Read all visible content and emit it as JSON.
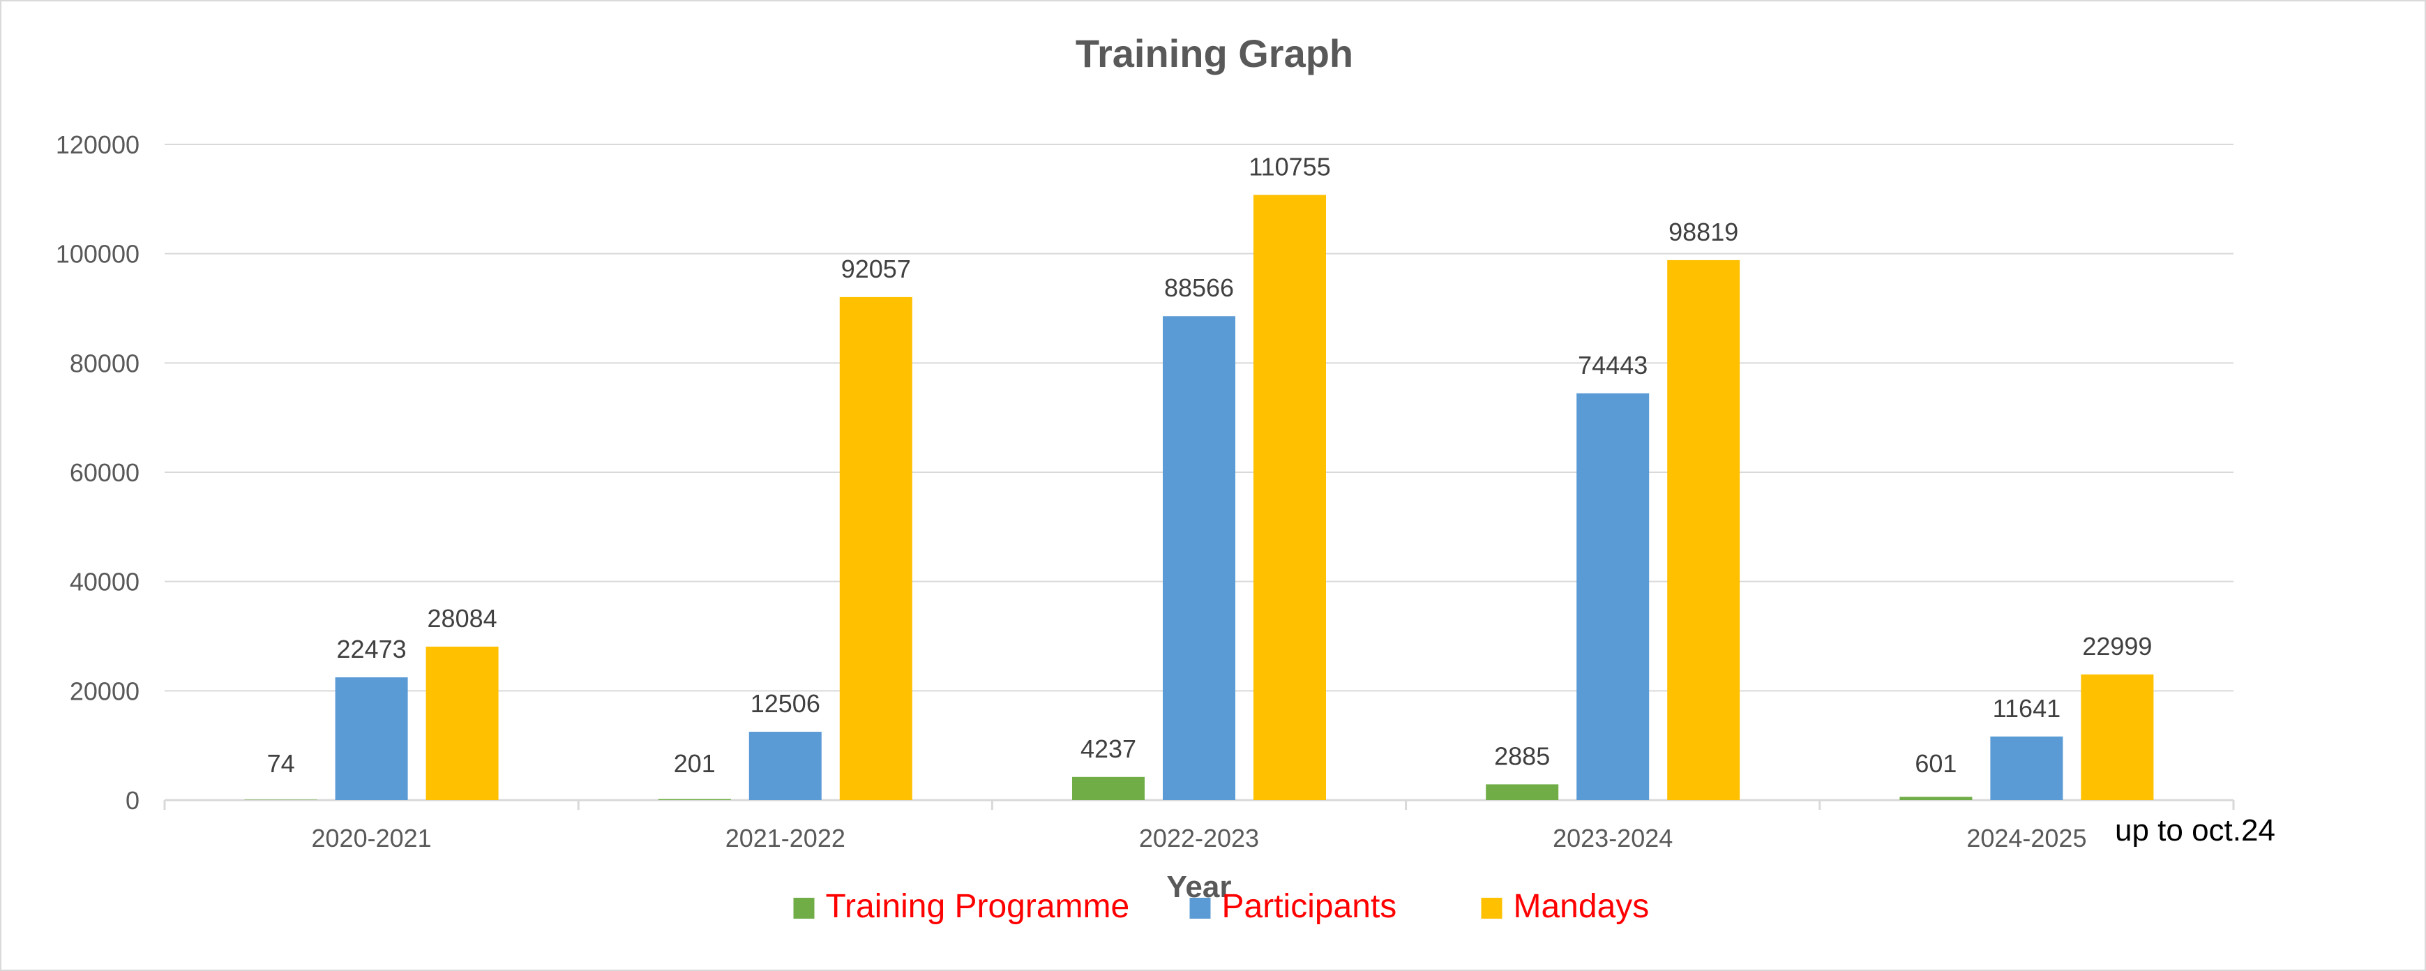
{
  "chart_data": {
    "type": "bar",
    "title": "Training Graph",
    "xlabel": "Year",
    "ylabel": "",
    "ylim": [
      0,
      120000
    ],
    "yticks": [
      0,
      20000,
      40000,
      60000,
      80000,
      100000,
      120000
    ],
    "categories": [
      "2020-2021",
      "2021-2022",
      "2022-2023",
      "2023-2024",
      "2024-2025"
    ],
    "series": [
      {
        "name": "Training Programme",
        "color": "#70ad47",
        "values": [
          74,
          201,
          4237,
          2885,
          601
        ]
      },
      {
        "name": "Participants",
        "color": "#5b9bd5",
        "values": [
          22473,
          12506,
          88566,
          74443,
          11641
        ]
      },
      {
        "name": "Mandays",
        "color": "#ffc000",
        "values": [
          28084,
          92057,
          110755,
          98819,
          22999
        ]
      }
    ],
    "grid": true,
    "legend_position": "bottom",
    "legend_text_color": "#ff0000",
    "annotation": "up to oct.24"
  }
}
